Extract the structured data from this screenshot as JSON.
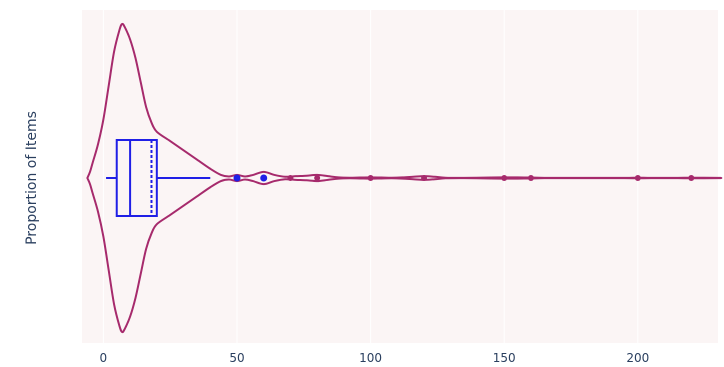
{
  "chart_data": {
    "type": "violin",
    "title": "",
    "xlabel": "",
    "ylabel": "Proportion of Items",
    "xlim": [
      -8,
      230
    ],
    "x_ticks": [
      0,
      50,
      100,
      150,
      200
    ],
    "grid": true,
    "legend": "none",
    "colors": {
      "plot_bg": "#fbf5f5",
      "paper_bg": "#ffffff",
      "grid": "#ffffff",
      "violin": "#a62a6c",
      "box": "#1f1fe6",
      "outlier_violin": "#a62a6c",
      "outlier_box": "#1f1fe6"
    },
    "series": [
      {
        "name": "",
        "density_profile": [
          [
            -6,
            0.0
          ],
          [
            -5,
            0.04
          ],
          [
            -4,
            0.1
          ],
          [
            -2,
            0.22
          ],
          [
            0,
            0.38
          ],
          [
            2,
            0.6
          ],
          [
            4,
            0.82
          ],
          [
            6,
            0.96
          ],
          [
            7,
            1.0
          ],
          [
            8,
            0.98
          ],
          [
            10,
            0.9
          ],
          [
            12,
            0.78
          ],
          [
            14,
            0.62
          ],
          [
            16,
            0.46
          ],
          [
            18,
            0.36
          ],
          [
            20,
            0.3
          ],
          [
            25,
            0.24
          ],
          [
            30,
            0.18
          ],
          [
            35,
            0.12
          ],
          [
            40,
            0.06
          ],
          [
            44,
            0.02
          ],
          [
            47,
            0.01
          ],
          [
            50,
            0.02
          ],
          [
            53,
            0.01
          ],
          [
            56,
            0.02
          ],
          [
            60,
            0.04
          ],
          [
            64,
            0.02
          ],
          [
            68,
            0.008
          ],
          [
            72,
            0.012
          ],
          [
            76,
            0.015
          ],
          [
            80,
            0.02
          ],
          [
            84,
            0.012
          ],
          [
            88,
            0.004
          ],
          [
            92,
            0.002
          ],
          [
            96,
            0.003
          ],
          [
            100,
            0.004
          ],
          [
            104,
            0.003
          ],
          [
            108,
            0.002
          ],
          [
            112,
            0.004
          ],
          [
            116,
            0.008
          ],
          [
            120,
            0.012
          ],
          [
            124,
            0.008
          ],
          [
            128,
            0.002
          ],
          [
            135,
            0.001
          ],
          [
            145,
            0.003
          ],
          [
            150,
            0.004
          ],
          [
            155,
            0.004
          ],
          [
            160,
            0.003
          ],
          [
            165,
            0.001
          ],
          [
            180,
            0.0005
          ],
          [
            195,
            0.001
          ],
          [
            200,
            0.002
          ],
          [
            205,
            0.001
          ],
          [
            215,
            0.001
          ],
          [
            220,
            0.002
          ],
          [
            230,
            0.001
          ]
        ],
        "box": {
          "lower_fence": 1,
          "q1": 5,
          "median": 10,
          "q3": 20,
          "upper_fence": 40,
          "mean": 18,
          "outliers": [
            50,
            60
          ]
        },
        "violin_points": [
          70,
          80,
          100,
          120,
          150,
          160,
          200,
          220
        ]
      }
    ]
  }
}
